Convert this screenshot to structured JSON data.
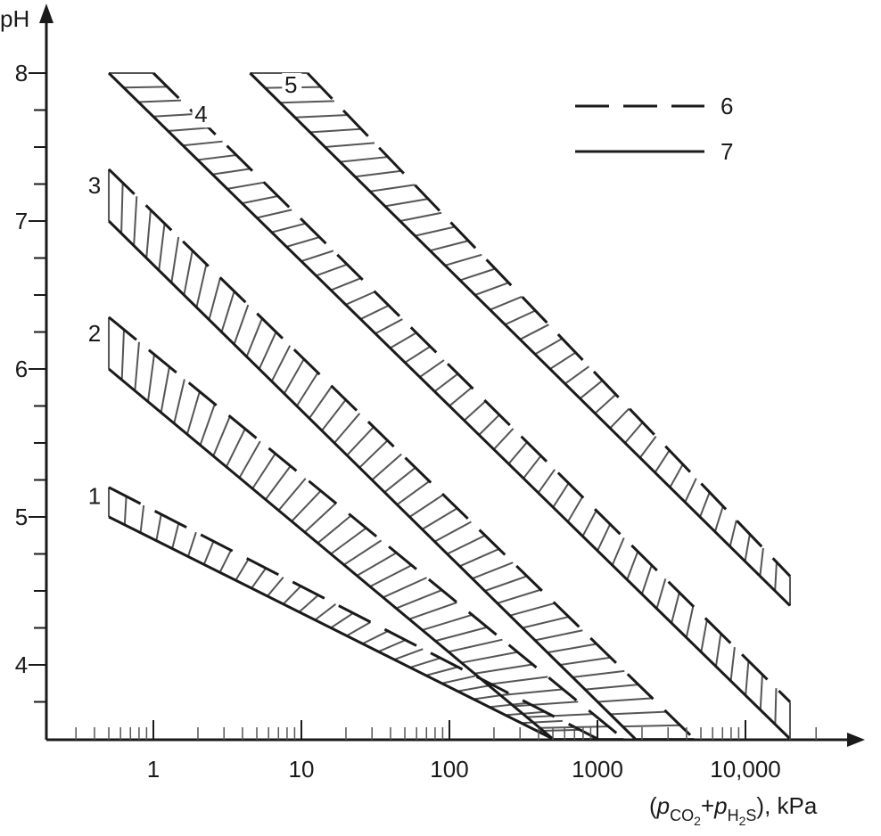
{
  "chart_data": {
    "type": "line",
    "x_scale": "log",
    "xlim": [
      0.2,
      50000
    ],
    "ylim": [
      3.5,
      8.4
    ],
    "ylabel": "pH",
    "xlabel": {
      "open": "(",
      "p1": "p",
      "sub1": "CO",
      "sub1n": "2",
      "plus": "+",
      "p2": "p",
      "sub2": "H",
      "sub2n": "2",
      "sub2s": "S",
      "close": "), kPa"
    },
    "x_ticks": [
      {
        "value": 1,
        "label": "1"
      },
      {
        "value": 10,
        "label": "10"
      },
      {
        "value": 100,
        "label": "100"
      },
      {
        "value": 1000,
        "label": "1000"
      },
      {
        "value": 10000,
        "label": "10,000"
      }
    ],
    "y_ticks": [
      {
        "value": 4,
        "label": "4"
      },
      {
        "value": 5,
        "label": "5"
      },
      {
        "value": 6,
        "label": "6"
      },
      {
        "value": 7,
        "label": "7"
      },
      {
        "value": 8,
        "label": "8"
      }
    ],
    "legend": {
      "position": "top-right",
      "entries": [
        {
          "style": "dashed",
          "label": "6"
        },
        {
          "style": "solid",
          "label": "7"
        }
      ]
    },
    "bands": [
      {
        "label": "1",
        "label_x": 0.4,
        "label_y": 5.1,
        "dashed": [
          [
            0.5,
            5.2
          ],
          [
            1000,
            3.5
          ]
        ],
        "solid": [
          [
            0.5,
            5.0
          ],
          [
            500,
            3.5
          ]
        ]
      },
      {
        "label": "2",
        "label_x": 0.4,
        "label_y": 6.2,
        "dashed": [
          [
            0.5,
            6.35
          ],
          [
            1500,
            3.5
          ]
        ],
        "solid": [
          [
            0.5,
            6.0
          ],
          [
            500,
            3.5
          ]
        ]
      },
      {
        "label": "3",
        "label_x": 0.4,
        "label_y": 7.2,
        "dashed": [
          [
            0.5,
            7.35
          ],
          [
            4500,
            3.5
          ]
        ],
        "solid": [
          [
            0.5,
            7.0
          ],
          [
            1800,
            3.5
          ]
        ]
      },
      {
        "label": "4",
        "label_x": 2.1,
        "label_y": 7.68,
        "dashed": [
          [
            1.0,
            8.0
          ],
          [
            20000,
            3.75
          ]
        ],
        "solid": [
          [
            0.5,
            8.0
          ],
          [
            20000,
            3.5
          ]
        ]
      },
      {
        "label": "5",
        "label_x": 8.5,
        "label_y": 7.88,
        "dashed": [
          [
            11,
            8.0
          ],
          [
            20000,
            4.6
          ]
        ],
        "solid": [
          [
            4.5,
            8.0
          ],
          [
            20000,
            4.4
          ]
        ]
      }
    ]
  }
}
